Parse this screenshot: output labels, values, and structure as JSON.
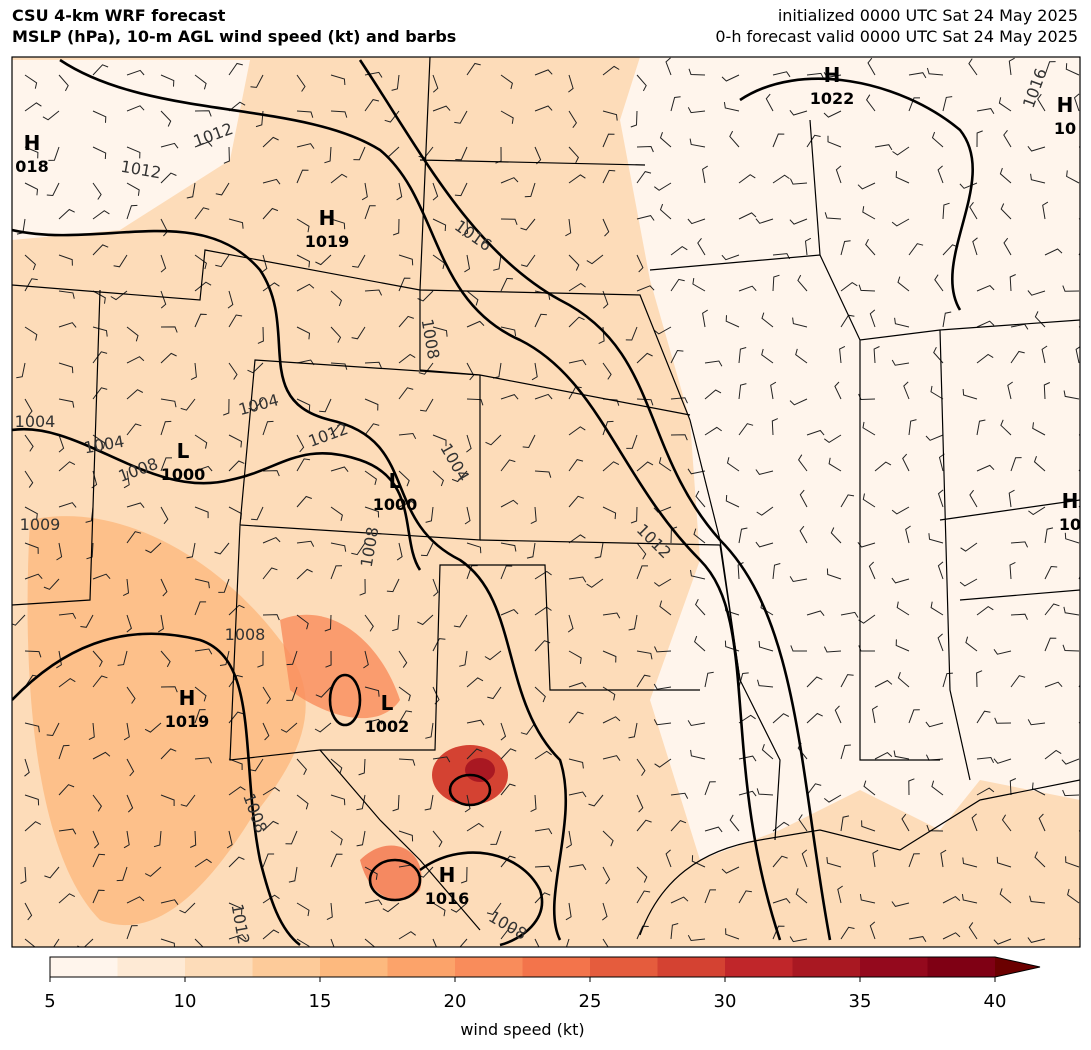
{
  "header": {
    "title": "CSU 4-km WRF forecast",
    "subtitle": "MSLP (hPa), 10-m AGL wind speed (kt) and barbs",
    "init": "initialized 0000 UTC Sat 24 May 2025",
    "valid": "0-h forecast valid 0000 UTC Sat 24 May 2025"
  },
  "pressure_centers": [
    {
      "letter": "H",
      "value": "018"
    },
    {
      "letter": "H",
      "value": "1019"
    },
    {
      "letter": "H",
      "value": "1022"
    },
    {
      "letter": "H",
      "value": "10"
    },
    {
      "letter": "L",
      "value": "1000"
    },
    {
      "letter": "L",
      "value": "1000"
    },
    {
      "letter": "H",
      "value": "10"
    },
    {
      "letter": "H",
      "value": "1019"
    },
    {
      "letter": "L",
      "value": "1002"
    },
    {
      "letter": "H",
      "value": "1016"
    }
  ],
  "isobar_labels": [
    "1012",
    "1012",
    "1016",
    "1008",
    "1004",
    "1012",
    "1004",
    "1004",
    "1004",
    "1008",
    "1008",
    "1012",
    "1008",
    "1008",
    "1012",
    "1008",
    "1016",
    "1009"
  ],
  "colorbar": {
    "label": "wind speed (kt)",
    "xlim": [
      5,
      40
    ],
    "xticks": [
      5,
      10,
      15,
      20,
      25,
      30,
      35,
      40
    ],
    "levels": [
      5,
      7.5,
      10,
      12.5,
      15,
      17.5,
      20,
      22.5,
      25,
      27.5,
      30,
      32.5,
      35,
      37.5,
      40
    ],
    "colors": [
      "#fff5ec",
      "#feead5",
      "#fddcb9",
      "#fdcb9a",
      "#fdb97e",
      "#fca36a",
      "#f98c5b",
      "#f3744b",
      "#e55c3d",
      "#d44232",
      "#c0262a",
      "#a91822",
      "#94091d",
      "#7f0014"
    ],
    "over_color": "#6b0000"
  }
}
